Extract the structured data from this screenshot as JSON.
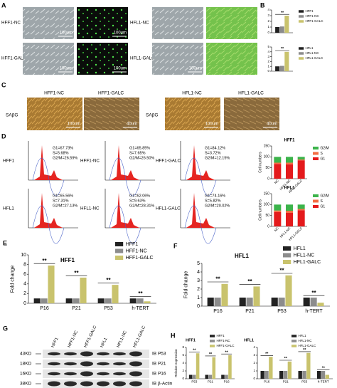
{
  "panel_labels": [
    "A",
    "B",
    "C",
    "D",
    "E",
    "F",
    "G",
    "H"
  ],
  "panel_a": {
    "rows": [
      {
        "label": "HFF1-NC",
        "bright_scale_bar": "100um",
        "fluor_scale_bar": "100um"
      },
      {
        "label": "HFF1-GALC",
        "bright_scale_bar": "100um",
        "fluor_scale_bar": "100um"
      },
      {
        "label": "HFL1-NC"
      },
      {
        "label": "HFL1-GALC",
        "bright_scale_bar": "100um"
      }
    ]
  },
  "panel_c": {
    "groups": [
      {
        "stain": "SAβG",
        "images": [
          {
            "title": "HFF1-NC",
            "scale_bar": "100um"
          },
          {
            "title": "HFF1-GALC",
            "scale_bar": "40um"
          }
        ]
      },
      {
        "stain": "SAβG",
        "images": [
          {
            "title": "HFL1-NC",
            "scale_bar": "100um"
          },
          {
            "title": "HFL1-GALC",
            "scale_bar": "40um"
          }
        ]
      }
    ]
  },
  "panel_d": {
    "rows": [
      {
        "label": "HFF1",
        "histograms": [
          {
            "stats": [
              "G1=67.73%",
              "S=5.68%",
              "G2/M=26.59%"
            ]
          },
          {
            "label": "HFF1-NC",
            "stats": [
              "G1=65.85%",
              "S=7.65%",
              "G2/M=26.50%"
            ]
          },
          {
            "label": "HFF1-GALC",
            "stats": [
              "G1=84.12%",
              "S=3.72%",
              "G2/M=12.15%"
            ]
          }
        ]
      },
      {
        "label": "HFL1",
        "histograms": [
          {
            "stats": [
              "G1=65.56%",
              "S=7.31%",
              "G2/M=27.13%"
            ]
          },
          {
            "label": "HFL1-NC",
            "stats": [
              "G1=62.06%",
              "S=9.63%",
              "G2/M=28.31%"
            ]
          },
          {
            "label": "HFL1-GALC",
            "stats": [
              "G1=74.16%",
              "S=5.82%",
              "G2/M=20.02%"
            ]
          }
        ]
      }
    ]
  },
  "panel_g": {
    "markers": [
      "43KD",
      "18KD",
      "16KD",
      "38KD"
    ],
    "lanes": [
      "HFF1",
      "HFF1-NC",
      "HFF1-GALC",
      "HFL1",
      "HFL1-NC",
      "HFL1-GALC"
    ],
    "antibodies": [
      "IB P53",
      "IB P21",
      "IB P16",
      "IB β-Actin"
    ]
  },
  "chart_data": [
    {
      "type": "bar",
      "categories": [
        null
      ],
      "ylim": [
        0,
        4
      ],
      "yticks": [
        0,
        1,
        2,
        3,
        4
      ],
      "annotations": [
        "**"
      ],
      "series": [
        {
          "name": "HFF1",
          "color": "#222222",
          "values": [
            1
          ]
        },
        {
          "name": "HFF1-NC",
          "color": "#8c8c8c",
          "values": [
            1.1
          ]
        },
        {
          "name": "HFF1-GALC",
          "color": "#c9c36d",
          "values": [
            3
          ]
        }
      ]
    },
    {
      "type": "bar",
      "categories": [
        null
      ],
      "ylim": [
        0,
        5
      ],
      "yticks": [
        0,
        1,
        2,
        3,
        4,
        5
      ],
      "annotations": [
        "**"
      ],
      "series": [
        {
          "name": "HFL1",
          "color": "#222222",
          "values": [
            1
          ]
        },
        {
          "name": "HFL1-NC",
          "color": "#8c8c8c",
          "values": [
            1.1
          ]
        },
        {
          "name": "HFL1-GALC",
          "color": "#c9c36d",
          "values": [
            4
          ]
        }
      ]
    },
    {
      "type": "stacked_bar",
      "title": "HFF1",
      "y_label": "Cell numbers",
      "categories": [
        "NC",
        "HFF1-NC",
        "HFF1-GALC"
      ],
      "ylim": [
        0,
        150
      ],
      "yticks": [
        0,
        50,
        100,
        150
      ],
      "series": [
        {
          "name": "G1",
          "color": "#e41a1c",
          "values": [
            67.73,
            65.85,
            84.12
          ]
        },
        {
          "name": "S",
          "color": "#f46d43",
          "values": [
            5.68,
            7.65,
            3.72
          ]
        },
        {
          "name": "G2/M",
          "color": "#3cb44b",
          "values": [
            26.59,
            26.5,
            12.15
          ]
        }
      ]
    },
    {
      "type": "stacked_bar",
      "title": "HFL1",
      "y_label": "Cell numbers",
      "categories": [
        "NC",
        "HFL1-NC",
        "HFL1-GALC"
      ],
      "ylim": [
        0,
        150
      ],
      "yticks": [
        0,
        50,
        100,
        150
      ],
      "series": [
        {
          "name": "G1",
          "color": "#e41a1c",
          "values": [
            65.56,
            62.06,
            74.16
          ]
        },
        {
          "name": "S",
          "color": "#f46d43",
          "values": [
            7.31,
            9.63,
            5.82
          ]
        },
        {
          "name": "G2/M",
          "color": "#3cb44b",
          "values": [
            27.13,
            28.31,
            20.02
          ]
        }
      ]
    },
    {
      "type": "bar",
      "title": "HFF1",
      "y_label": "Fold change",
      "categories": [
        "P16",
        "P21",
        "P53",
        "h-TERT"
      ],
      "ylim": [
        0,
        10
      ],
      "yticks": [
        0,
        2,
        4,
        6,
        8,
        10
      ],
      "annotations": [
        "**",
        "**",
        "**",
        "**"
      ],
      "series": [
        {
          "name": "HFF1",
          "color": "#222222",
          "values": [
            1,
            1,
            1,
            1
          ]
        },
        {
          "name": "HFF1-NC",
          "color": "#8c8c8c",
          "values": [
            1,
            1,
            1,
            1
          ]
        },
        {
          "name": "HFF1-GALC",
          "color": "#c9c36d",
          "values": [
            7.8,
            5.3,
            3.8,
            0.4
          ]
        }
      ]
    },
    {
      "type": "bar",
      "title": "HFL1",
      "y_label": "Fold change",
      "categories": [
        "P16",
        "P21",
        "P53",
        "h-TERT"
      ],
      "ylim": [
        0,
        5
      ],
      "yticks": [
        0,
        1,
        2,
        3,
        4,
        5
      ],
      "annotations": [
        "**",
        "**",
        "**",
        "**"
      ],
      "series": [
        {
          "name": "HFL1",
          "color": "#222222",
          "values": [
            1,
            1,
            1,
            1
          ]
        },
        {
          "name": "HFL1-NC",
          "color": "#8c8c8c",
          "values": [
            1,
            1,
            1,
            1
          ]
        },
        {
          "name": "HFL1-GALC",
          "color": "#c9c36d",
          "values": [
            2.6,
            2.3,
            3.6,
            0.4
          ]
        }
      ]
    },
    {
      "type": "bar",
      "title": "HFF1",
      "y_label": "Relative expression",
      "categories": [
        "P53",
        "P21",
        "P16"
      ],
      "ylim": [
        0,
        8
      ],
      "yticks": [
        0,
        2,
        4,
        6,
        8
      ],
      "annotations": [
        "**",
        "**",
        "**"
      ],
      "series": [
        {
          "name": "HFF1",
          "color": "#222222",
          "values": [
            1,
            1,
            1
          ]
        },
        {
          "name": "HFF1-NC",
          "color": "#8c8c8c",
          "values": [
            1,
            1,
            1
          ]
        },
        {
          "name": "HFF1-GALC",
          "color": "#c9c36d",
          "values": [
            6.5,
            5.5,
            6
          ]
        }
      ]
    },
    {
      "type": "bar",
      "title": "HFL1",
      "categories": [
        "P16",
        "P21",
        "P53",
        "h-TERT"
      ],
      "ylim": [
        0,
        4
      ],
      "yticks": [
        0,
        1,
        2,
        3,
        4
      ],
      "annotations": [
        "**",
        "**",
        "**",
        "**"
      ],
      "series": [
        {
          "name": "HFL1",
          "color": "#222222",
          "values": [
            1,
            1,
            1,
            1
          ]
        },
        {
          "name": "HFL1-NC",
          "color": "#8c8c8c",
          "values": [
            1,
            1,
            1,
            1
          ]
        },
        {
          "name": "HFL1-GALC",
          "color": "#c9c36d",
          "values": [
            2.8,
            2.2,
            3.3,
            0.5
          ]
        }
      ]
    }
  ]
}
